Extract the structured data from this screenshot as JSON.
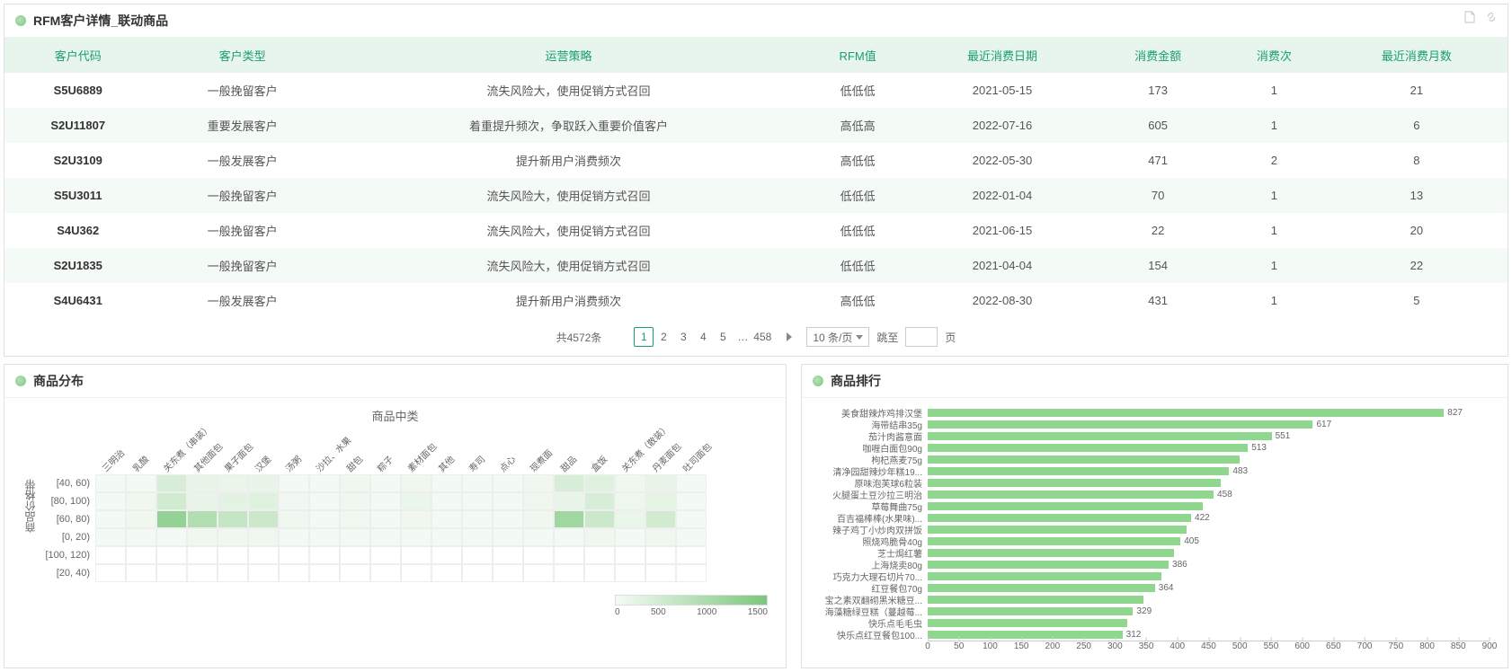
{
  "topPanel": {
    "title": "RFM客户详情_联动商品",
    "columns": [
      "客户代码",
      "客户类型",
      "运营策略",
      "RFM值",
      "最近消费日期",
      "消费金额",
      "消费次",
      "最近消费月数"
    ],
    "rows": [
      [
        "S5U6889",
        "一般挽留客户",
        "流失风险大，使用促销方式召回",
        "低低低",
        "2021-05-15",
        "173",
        "1",
        "21"
      ],
      [
        "S2U11807",
        "重要发展客户",
        "着重提升频次，争取跃入重要价值客户",
        "高低高",
        "2022-07-16",
        "605",
        "1",
        "6"
      ],
      [
        "S2U3109",
        "一般发展客户",
        "提升新用户消费频次",
        "高低低",
        "2022-05-30",
        "471",
        "2",
        "8"
      ],
      [
        "S5U3011",
        "一般挽留客户",
        "流失风险大，使用促销方式召回",
        "低低低",
        "2022-01-04",
        "70",
        "1",
        "13"
      ],
      [
        "S4U362",
        "一般挽留客户",
        "流失风险大，使用促销方式召回",
        "低低低",
        "2021-06-15",
        "22",
        "1",
        "20"
      ],
      [
        "S2U1835",
        "一般挽留客户",
        "流失风险大，使用促销方式召回",
        "低低低",
        "2021-04-04",
        "154",
        "1",
        "22"
      ],
      [
        "S4U6431",
        "一般发展客户",
        "提升新用户消费频次",
        "高低低",
        "2022-08-30",
        "431",
        "1",
        "5"
      ]
    ],
    "pagination": {
      "total_label": "共4572条",
      "pages": [
        "1",
        "2",
        "3",
        "4",
        "5",
        "…",
        "458"
      ],
      "current": "1",
      "per_page_label": "10 条/页",
      "jump_label": "跳至",
      "page_suffix": "页"
    }
  },
  "heatmapPanel": {
    "title": "商品分布",
    "x_title": "商品中类",
    "y_axis_label": "商品价格带",
    "x_labels": [
      "三明治",
      "乳酸",
      "关东煮（串装）",
      "其他面包",
      "果子面包",
      "汉堡",
      "汤粥",
      "沙拉、水果",
      "甜包",
      "粽子",
      "素材面包",
      "其他",
      "寿司",
      "点心",
      "现煮面",
      "甜品",
      "盒饭",
      "关东煮（散装）",
      "丹麦面包",
      "吐司面包"
    ],
    "y_labels": [
      "[40, 60)",
      "[80, 100)",
      "[60, 80)",
      "[0, 20)",
      "[100, 120)",
      "[20, 40)"
    ],
    "max_value": 1500,
    "legend_ticks": [
      "0",
      "500",
      "1000",
      "1500"
    ],
    "cells": [
      [
        0.02,
        0.02,
        0.25,
        0.1,
        0.08,
        0.1,
        0.02,
        0.02,
        0.05,
        0.02,
        0.05,
        0.02,
        0.02,
        0.02,
        0.05,
        0.25,
        0.18,
        0.05,
        0.1,
        0.02
      ],
      [
        0.02,
        0.05,
        0.3,
        0.1,
        0.15,
        0.18,
        0.03,
        0.02,
        0.05,
        0.02,
        0.08,
        0.02,
        0.02,
        0.02,
        0.06,
        0.1,
        0.25,
        0.06,
        0.12,
        0.02
      ],
      [
        0.02,
        0.05,
        0.8,
        0.55,
        0.4,
        0.35,
        0.05,
        0.02,
        0.04,
        0.02,
        0.05,
        0.02,
        0.02,
        0.02,
        0.05,
        0.7,
        0.35,
        0.08,
        0.3,
        0.02
      ],
      [
        0.02,
        0.02,
        0.02,
        0.05,
        0.05,
        0.05,
        0.02,
        0.02,
        0.02,
        0.02,
        0.02,
        0.02,
        0.02,
        0.02,
        0.02,
        0.02,
        0.05,
        0.02,
        0.05,
        0.02
      ],
      [
        0.0,
        0.0,
        0.0,
        0.0,
        0.0,
        0.0,
        0.0,
        0.0,
        0.0,
        0.0,
        0.0,
        0.0,
        0.0,
        0.0,
        0.0,
        0.0,
        0.0,
        0.0,
        0.0,
        0.0
      ],
      [
        0.0,
        0.0,
        0.0,
        0.0,
        0.0,
        0.0,
        0.0,
        0.0,
        0.0,
        0.0,
        0.0,
        0.0,
        0.0,
        0.0,
        0.0,
        0.0,
        0.0,
        0.0,
        0.0,
        0.0
      ]
    ],
    "cell_color_min": "#f5faf5",
    "cell_color_max": "#7cc77c"
  },
  "barPanel": {
    "title": "商品排行",
    "x_max": 900,
    "x_ticks": [
      0,
      50,
      100,
      150,
      200,
      250,
      300,
      350,
      400,
      450,
      500,
      550,
      600,
      650,
      700,
      750,
      800,
      850,
      900
    ],
    "bar_color": "#8fd68f",
    "items": [
      {
        "label": "美食甜辣炸鸡排汉堡",
        "value": 827
      },
      {
        "label": "海带结串35g",
        "value": 617
      },
      {
        "label": "茄汁肉酱意面",
        "value": 551
      },
      {
        "label": "咖喱白面包90g",
        "value": 513
      },
      {
        "label": "枸杞燕麦75g",
        "value": null,
        "est": 500
      },
      {
        "label": "清净园甜辣炒年糕19...",
        "value": 483
      },
      {
        "label": "原味泡芙球6粒装",
        "value": null,
        "est": 470
      },
      {
        "label": "火腿蛋土豆沙拉三明治",
        "value": 458
      },
      {
        "label": "草莓舞曲75g",
        "value": null,
        "est": 440
      },
      {
        "label": "百吉福棒棒(水果味)...",
        "value": 422
      },
      {
        "label": "辣子鸡丁小炒肉双拼饭",
        "value": null,
        "est": 415
      },
      {
        "label": "照烧鸡脆骨40g",
        "value": 405
      },
      {
        "label": "芝士焗红薯",
        "value": null,
        "est": 395
      },
      {
        "label": "上海烧卖80g",
        "value": 386
      },
      {
        "label": "巧克力大理石切片70...",
        "value": null,
        "est": 375
      },
      {
        "label": "红豆餐包70g",
        "value": 364
      },
      {
        "label": "宝之素双翻砌黑米糖豆...",
        "value": null,
        "est": 345
      },
      {
        "label": "海藻糖绿豆糕（蔓越莓...",
        "value": 329
      },
      {
        "label": "快乐点毛毛虫",
        "value": null,
        "est": 320
      },
      {
        "label": "快乐点红豆餐包100...",
        "value": 312
      }
    ]
  },
  "colors": {
    "header_bg": "#e8f5ed",
    "header_text": "#1a9e6e",
    "row_alt": "#f4faf6",
    "accent": "#1a9e6e"
  }
}
